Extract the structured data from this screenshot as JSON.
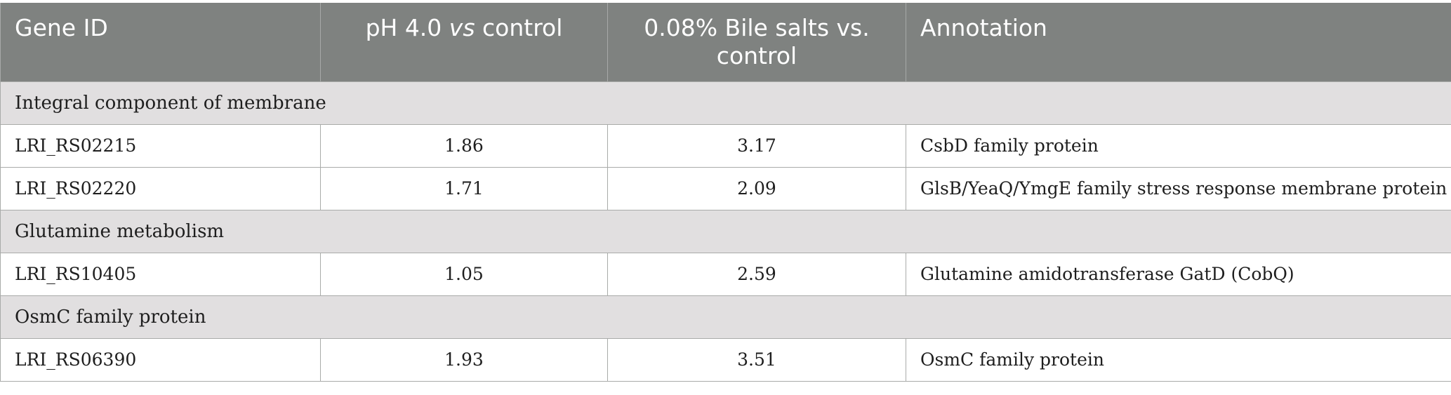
{
  "table": {
    "headers": {
      "gene_id": "Gene ID",
      "ph_prefix": "pH 4.0 ",
      "ph_vs": "vs",
      "ph_suffix": " control",
      "bile": "0.08% Bile salts vs. control",
      "annotation": "Annotation"
    },
    "sections": [
      {
        "title": "Integral component of membrane",
        "rows": [
          {
            "gene_id": "LRI_RS02215",
            "ph": "1.86",
            "bile": "3.17",
            "annotation": "CsbD family protein"
          },
          {
            "gene_id": "LRI_RS02220",
            "ph": "1.71",
            "bile": "2.09",
            "annotation": "GlsB/YeaQ/YmgE family stress response membrane protein"
          }
        ]
      },
      {
        "title": "Glutamine metabolism",
        "rows": [
          {
            "gene_id": "LRI_RS10405",
            "ph": "1.05",
            "bile": "2.59",
            "annotation": "Glutamine amidotransferase GatD (CobQ)"
          }
        ]
      },
      {
        "title": "OsmC family protein",
        "rows": [
          {
            "gene_id": "LRI_RS06390",
            "ph": "1.93",
            "bile": "3.51",
            "annotation": "OsmC family protein"
          }
        ]
      }
    ]
  }
}
